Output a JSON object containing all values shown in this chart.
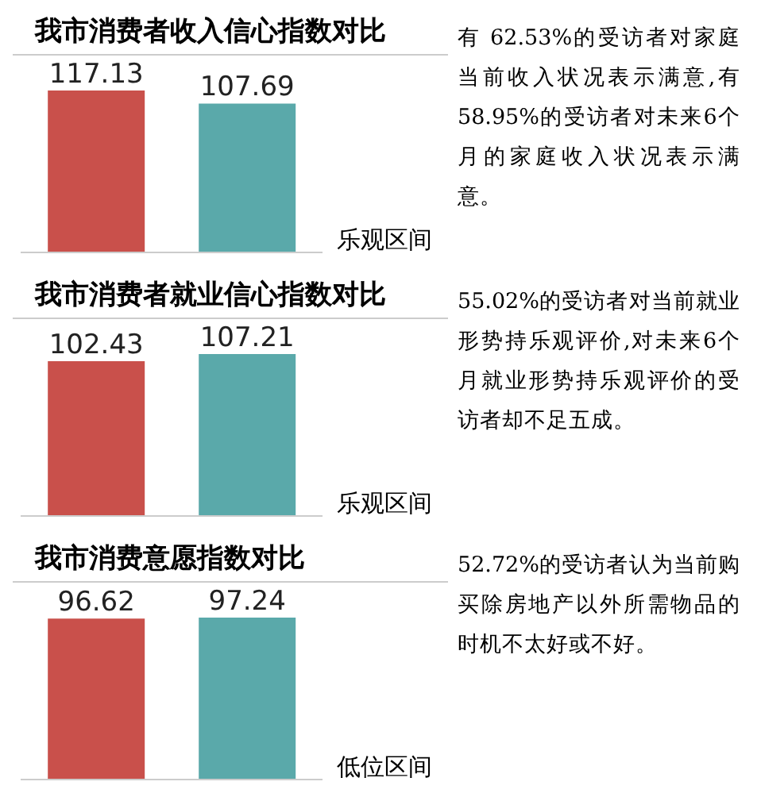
{
  "chart_data": [
    {
      "type": "bar",
      "title": "我市消费者收入信心指数对比",
      "categories": [
        null,
        null
      ],
      "values": [
        117.13,
        107.69
      ],
      "colors": [
        "#c9504b",
        "#5aa9aa"
      ],
      "data_labels": true,
      "annotations": [
        "乐观区间",
        "有 62.53%的受访者对家庭当前收入状况表示满意,有58.95%的受访者对未来6个月的家庭收入状况表示满意。"
      ]
    },
    {
      "type": "bar",
      "title": "我市消费者就业信心指数对比",
      "categories": [
        null,
        null
      ],
      "values": [
        102.43,
        107.21
      ],
      "colors": [
        "#c9504b",
        "#5aa9aa"
      ],
      "data_labels": true,
      "annotations": [
        "乐观区间",
        "55.02%的受访者对当前就业形势持乐观评价,对未来6个月就业形势持乐观评价的受访者却不足五成。"
      ]
    },
    {
      "type": "bar",
      "title": "我市消费意愿指数对比",
      "categories": [
        null,
        null
      ],
      "values": [
        96.62,
        97.24
      ],
      "colors": [
        "#c9504b",
        "#5aa9aa"
      ],
      "data_labels": true,
      "annotations": [
        "低位区间",
        "52.72%的受访者认为当前购买除房地产以外所需物品的时机不太好或不好。"
      ]
    }
  ]
}
